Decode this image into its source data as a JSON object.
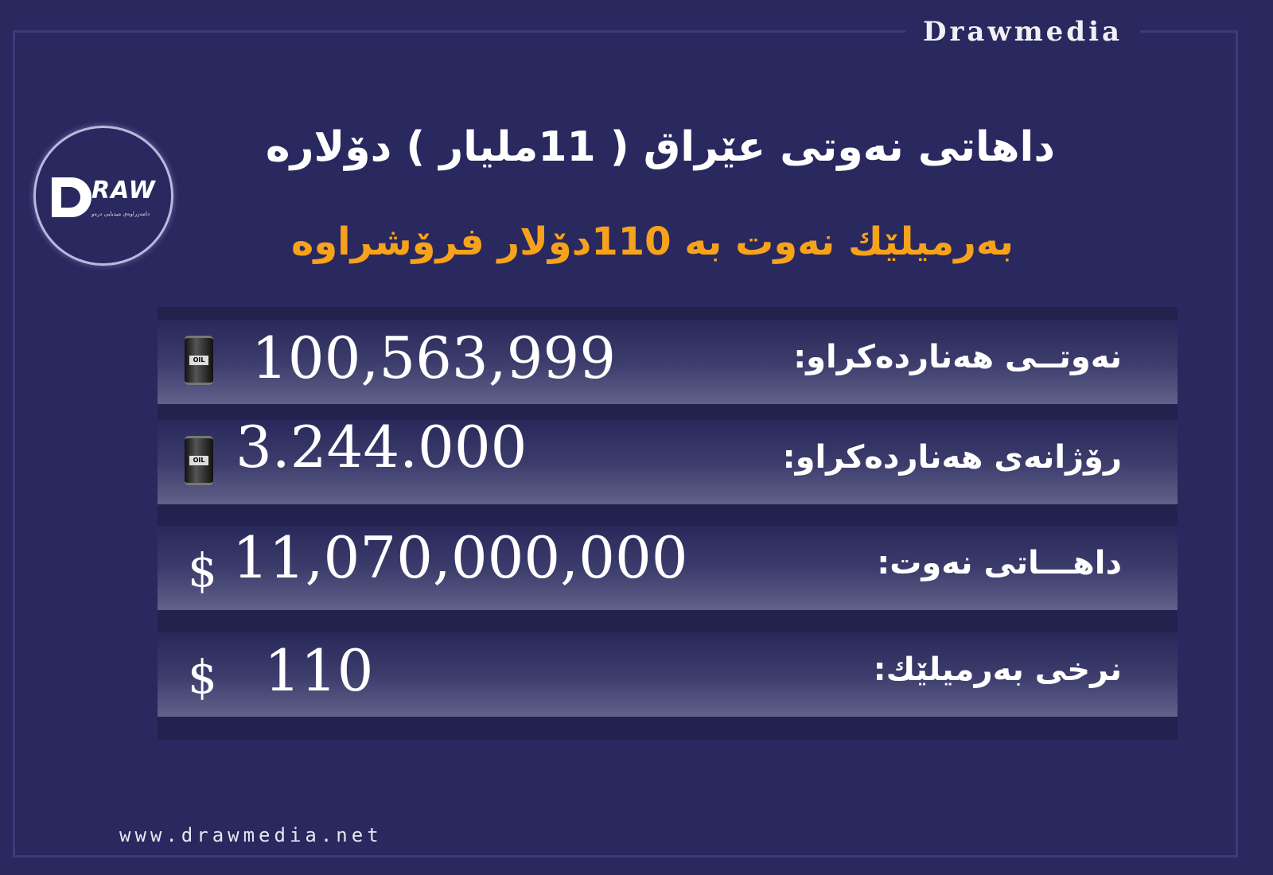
{
  "brand": "Drawmedia",
  "website": "www.drawmedia.net",
  "logo": {
    "text": "RAW",
    "subtext": "دامەزراوەی میدیایی درەو"
  },
  "title": "داهاتی نەوتی عێراق ( 11ملیار ) دۆلارە",
  "subtitle": "بەرمیلێك نەوت بە  110دۆلار فرۆشراوە",
  "colors": {
    "background": "#29285f",
    "accent": "#f7a21b",
    "text": "#ffffff"
  },
  "rows": [
    {
      "label": "نەوتــی هەناردەكراو:",
      "value": "100,563,999",
      "icon": "oil-barrel-icon",
      "icon_text": "OIL"
    },
    {
      "label": "رۆژانەی هەناردەكراو:",
      "value": "3.244.000",
      "icon": "oil-barrel-icon",
      "icon_text": "OIL"
    },
    {
      "label": "داهـــاتی نەوت:",
      "value": "11,070,000,000",
      "currency": "$"
    },
    {
      "label": "نرخی بەرمیلێك:",
      "value": "110",
      "currency": "$"
    }
  ]
}
